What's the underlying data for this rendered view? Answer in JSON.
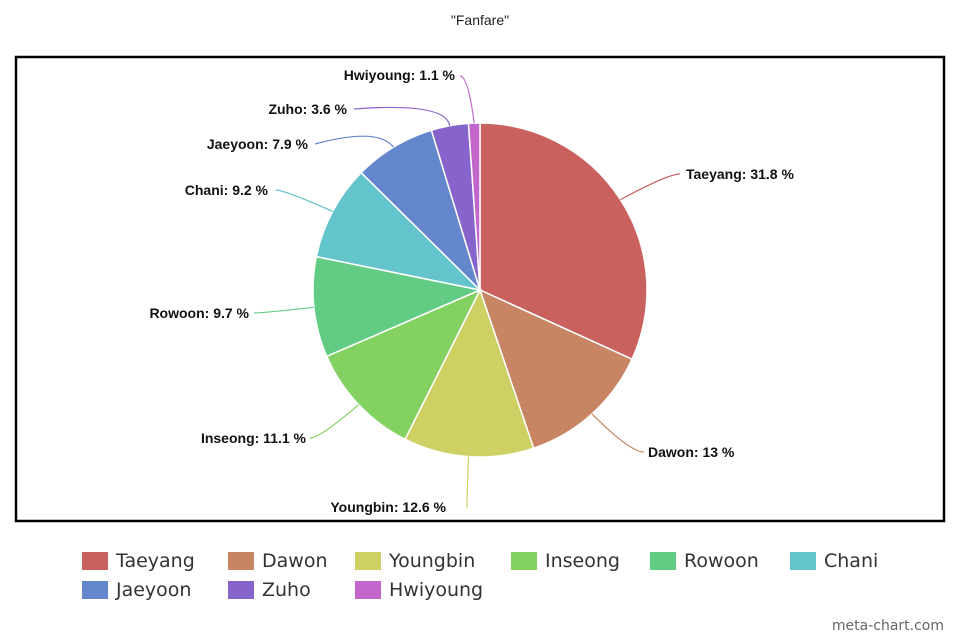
{
  "chart_data": {
    "type": "pie",
    "title": "\"Fanfare\"",
    "slices": [
      {
        "name": "Taeyang",
        "value": 31.8,
        "label": "Taeyang: 31.8 %",
        "color": "#c9625f"
      },
      {
        "name": "Dawon",
        "value": 13,
        "label": "Dawon: 13 %",
        "color": "#c78564"
      },
      {
        "name": "Youngbin",
        "value": 12.6,
        "label": "Youngbin: 12.6 %",
        "color": "#cfd063"
      },
      {
        "name": "Inseong",
        "value": 11.1,
        "label": "Inseong: 11.1 %",
        "color": "#82d161"
      },
      {
        "name": "Rowoon",
        "value": 9.7,
        "label": "Rowoon: 9.7 %",
        "color": "#63cc84"
      },
      {
        "name": "Chani",
        "value": 9.2,
        "label": "Chani: 9.2 %",
        "color": "#64c4cb"
      },
      {
        "name": "Jaeyoon",
        "value": 7.9,
        "label": "Jaeyoon: 7.9 %",
        "color": "#6386cc"
      },
      {
        "name": "Zuho",
        "value": 3.6,
        "label": "Zuho: 3.6 %",
        "color": "#8764cc"
      },
      {
        "name": "Hwiyoung",
        "value": 1.1,
        "label": "Hwiyoung: 1.1 %",
        "color": "#c266cb"
      }
    ],
    "legend_position": "bottom"
  },
  "watermark": "meta-chart.com"
}
